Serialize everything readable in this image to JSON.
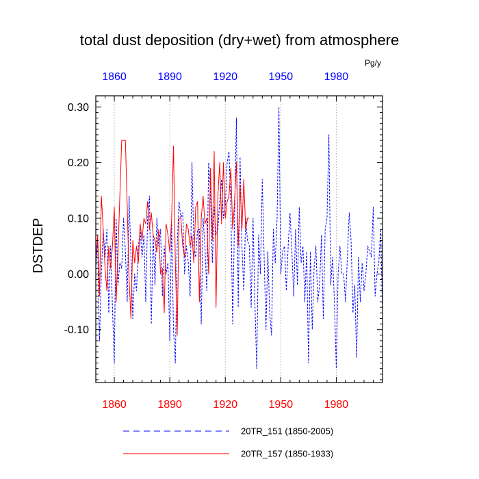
{
  "chart_data": {
    "type": "line",
    "title": "total dust deposition (dry+wet) from atmosphere",
    "ylabel": "DSTDEP",
    "units": "Pg/y",
    "xlim": [
      1850,
      2005
    ],
    "ylim": [
      -0.195,
      0.32
    ],
    "yticks": [
      0.3,
      0.2,
      0.1,
      0.0,
      -0.1
    ],
    "ytick_labels": [
      "0.30",
      "0.20",
      "0.10",
      "0.00",
      "-0.10"
    ],
    "xticks_bottom": [
      1860,
      1890,
      1920,
      1950,
      1980
    ],
    "xticks_top": [
      1860,
      1890,
      1920,
      1950,
      1980
    ],
    "xtick_labels": [
      "1860",
      "1890",
      "1920",
      "1950",
      "1980"
    ],
    "grid": "vertical dotted at major x ticks",
    "colors": {
      "bottom_ticks": "#ff0000",
      "top_ticks": "#0000ff",
      "series_151": "#0000ff",
      "series_157": "#ff0000"
    },
    "legend": [
      {
        "label": "20TR_151 (1850-2005)",
        "style": "dashed",
        "color": "#0000ff"
      },
      {
        "label": "20TR_157 (1850-1933)",
        "style": "solid",
        "color": "#ff0000"
      }
    ],
    "series": [
      {
        "name": "20TR_151 (1850-2005)",
        "start_year": 1850,
        "values": [
          0.01,
          0.06,
          -0.12,
          0.0,
          0.08,
          0.03,
          0.08,
          -0.07,
          0.05,
          -0.06,
          -0.16,
          0.1,
          -0.02,
          0.02,
          0.01,
          0.1,
          0.04,
          -0.05,
          0.14,
          0.03,
          -0.08,
          0.0,
          -0.03,
          0.05,
          0.08,
          0.03,
          0.07,
          -0.05,
          0.1,
          0.14,
          -0.09,
          0.07,
          -0.02,
          0.1,
          0.05,
          0.08,
          -0.04,
          0.05,
          0.0,
          0.02,
          -0.12,
          0.09,
          -0.1,
          -0.16,
          0.05,
          0.13,
          0.1,
          0.11,
          0.0,
          0.05,
          0.02,
          -0.04,
          0.2,
          0.05,
          0.03,
          0.08,
          0.08,
          -0.09,
          0.1,
          0.05,
          -0.03,
          0.2,
          0.15,
          0.02,
          0.12,
          0.07,
          0.08,
          0.13,
          0.17,
          0.1,
          0.12,
          0.2,
          0.22,
          0.12,
          -0.09,
          0.1,
          0.28,
          -0.06,
          0.21,
          0.05,
          -0.03,
          0.1,
          0.06,
          0.05,
          -0.06,
          0.1,
          -0.05,
          -0.17,
          0.07,
          0.0,
          0.17,
          0.03,
          -0.1,
          0.04,
          -0.07,
          -0.11,
          0.08,
          0.02,
          0.1,
          0.3,
          0.0,
          0.04,
          0.05,
          -0.03,
          0.05,
          0.11,
          0.04,
          -0.04,
          0.08,
          -0.02,
          0.12,
          0.02,
          0.05,
          -0.05,
          0.04,
          -0.16,
          0.04,
          -0.1,
          0.01,
          0.05,
          -0.05,
          -0.02,
          0.07,
          -0.08,
          0.08,
          0.1,
          0.25,
          -0.02,
          0.03,
          -0.05,
          -0.17,
          0.0,
          0.05,
          0.0,
          0.0,
          -0.05,
          0.03,
          0.11,
          0.06,
          -0.07,
          -0.02,
          -0.15,
          0.03,
          -0.05,
          0.02,
          -0.03,
          0.0,
          0.05,
          0.04,
          0.03,
          0.12,
          -0.04,
          0.0,
          0.02,
          0.08,
          -0.07
        ]
      },
      {
        "name": "20TR_157 (1850-1933)",
        "start_year": 1850,
        "values": [
          0.02,
          0.07,
          -0.04,
          0.14,
          0.08,
          0.01,
          -0.03,
          0.05,
          0.01,
          0.05,
          0.12,
          -0.05,
          0.04,
          0.14,
          0.24,
          0.24,
          0.24,
          0.12,
          -0.01,
          -0.08,
          0.06,
          0.02,
          0.05,
          0.02,
          0.09,
          0.06,
          0.1,
          0.09,
          0.13,
          0.08,
          0.11,
          0.07,
          0.06,
          0.04,
          0.08,
          0.0,
          0.01,
          -0.07,
          0.09,
          0.07,
          0.04,
          0.1,
          0.23,
          0.02,
          -0.11,
          0.1,
          0.1,
          0.05,
          0.03,
          0.09,
          0.08,
          0.05,
          0.07,
          0.02,
          0.12,
          0.13,
          -0.05,
          0.1,
          0.14,
          0.09,
          0.1,
          0.0,
          0.19,
          0.06,
          0.22,
          -0.06,
          0.14,
          0.2,
          0.09,
          0.2,
          0.1,
          0.13,
          0.14,
          0.19,
          0.08,
          0.13,
          0.2,
          0.05,
          0.16,
          0.08,
          0.17,
          0.08,
          0.1,
          0.1
        ]
      }
    ]
  }
}
